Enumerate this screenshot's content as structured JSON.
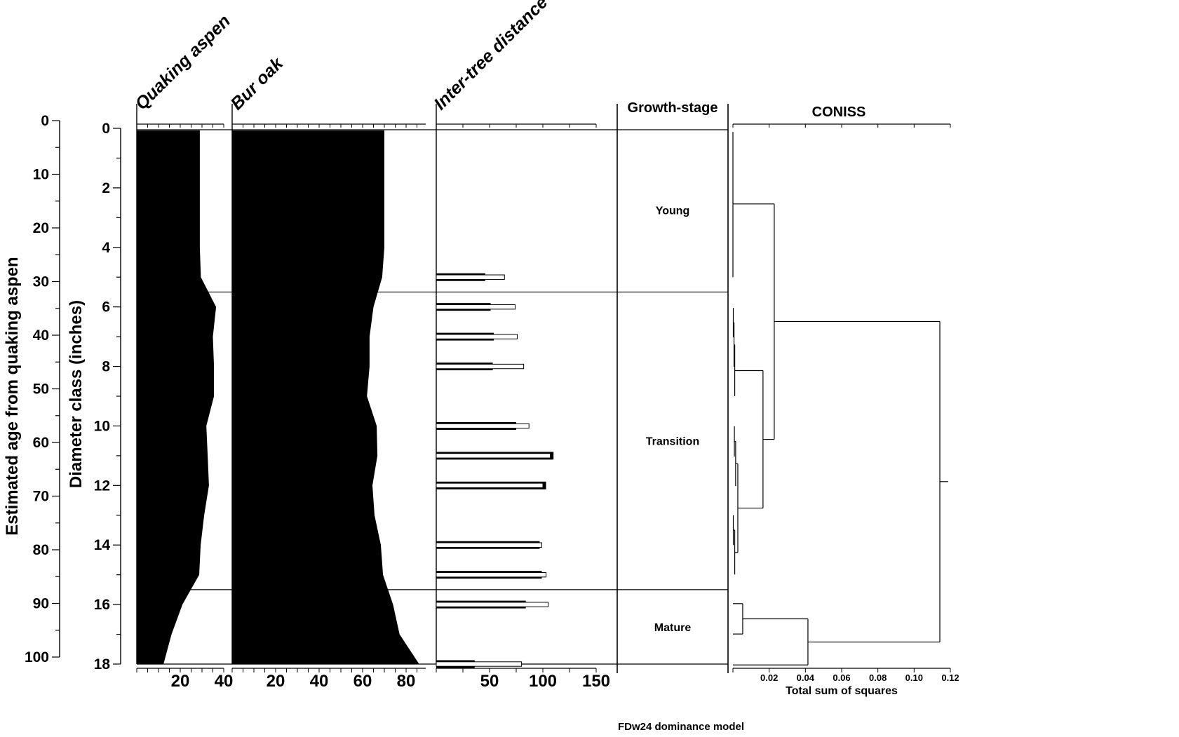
{
  "caption": "FDw24 dominance model",
  "age_axis": {
    "title": "Estimated age from quaking aspen",
    "min": 0,
    "max": 100,
    "major_step": 10,
    "minor_step": 5,
    "tick_labels": [
      "0",
      "10",
      "20",
      "30",
      "40",
      "50",
      "60",
      "70",
      "80",
      "90",
      "100"
    ]
  },
  "diameter_axis": {
    "title": "Diameter class (inches)",
    "min": 0,
    "max": 18,
    "major_step": 2,
    "minor_step": 1,
    "tick_labels": [
      "0",
      "2",
      "4",
      "6",
      "8",
      "10",
      "12",
      "14",
      "16",
      "18"
    ]
  },
  "chart_data": [
    {
      "id": "quaking_aspen",
      "type": "area",
      "title": "Quaking aspen",
      "x_axis": {
        "min": 0,
        "max": 40,
        "minor_step": 5,
        "ticks": [
          20,
          40
        ],
        "tick_labels": [
          "20",
          "40"
        ]
      },
      "points": [
        [
          0,
          29
        ],
        [
          1,
          29
        ],
        [
          2,
          29
        ],
        [
          3,
          29
        ],
        [
          4,
          29
        ],
        [
          5,
          29.5
        ],
        [
          6,
          36.5
        ],
        [
          7,
          35
        ],
        [
          8,
          35.5
        ],
        [
          9,
          35.5
        ],
        [
          10,
          32
        ],
        [
          11,
          32.6
        ],
        [
          12,
          33.2
        ],
        [
          13,
          31
        ],
        [
          14,
          29.4
        ],
        [
          15,
          28.7
        ],
        [
          16,
          21
        ],
        [
          17,
          16
        ],
        [
          18,
          12.3
        ]
      ]
    },
    {
      "id": "bur_oak",
      "type": "area",
      "title": "Bur oak",
      "x_axis": {
        "min": 0,
        "max": 85,
        "minor_step": 5,
        "ticks": [
          20,
          40,
          60,
          80
        ],
        "tick_labels": [
          "20",
          "40",
          "60",
          "80"
        ]
      },
      "points": [
        [
          0,
          70
        ],
        [
          1,
          70
        ],
        [
          2,
          70
        ],
        [
          3,
          70
        ],
        [
          4,
          70
        ],
        [
          5,
          69
        ],
        [
          6,
          65
        ],
        [
          7,
          63.2
        ],
        [
          8,
          63.2
        ],
        [
          9,
          62
        ],
        [
          10,
          66.5
        ],
        [
          11,
          66.8
        ],
        [
          12,
          64.5
        ],
        [
          13,
          65.5
        ],
        [
          14,
          68.4
        ],
        [
          15,
          69.4
        ],
        [
          16,
          74
        ],
        [
          17,
          77
        ],
        [
          18,
          86
        ]
      ]
    },
    {
      "id": "inter_tree",
      "type": "bar",
      "title": "Inter-tree distance",
      "x_axis": {
        "min": 0,
        "max": 150,
        "minor_step": 25,
        "ticks": [
          50,
          100,
          150
        ],
        "tick_labels": [
          "50",
          "100",
          "150"
        ]
      },
      "rows": [
        {
          "diameter": 5,
          "solid": 46,
          "open": 64
        },
        {
          "diameter": 6,
          "solid": 51,
          "open": 74
        },
        {
          "diameter": 7,
          "solid": 54,
          "open": 76
        },
        {
          "diameter": 8,
          "solid": 53,
          "open": 82
        },
        {
          "diameter": 10,
          "solid": 75,
          "open": 87
        },
        {
          "diameter": 11,
          "solid": 110,
          "open": 107
        },
        {
          "diameter": 12,
          "solid": 103,
          "open": 100
        },
        {
          "diameter": 14,
          "solid": 97,
          "open": 99
        },
        {
          "diameter": 15,
          "solid": 99,
          "open": 103
        },
        {
          "diameter": 16,
          "solid": 84,
          "open": 105
        },
        {
          "diameter": 18,
          "solid": 36,
          "open": 80
        }
      ]
    },
    {
      "id": "growth_stage",
      "type": "zones",
      "title": "Growth-stage",
      "zones": [
        {
          "label": "Young",
          "from": 0,
          "to": 5.5
        },
        {
          "label": "Transition",
          "from": 5.5,
          "to": 15.5
        },
        {
          "label": "Mature",
          "from": 15.5,
          "to": 18
        }
      ]
    },
    {
      "id": "coniss",
      "type": "dendrogram",
      "title": "CONISS",
      "xlabel": "Total sum of squares",
      "x_axis": {
        "min": 0,
        "max": 0.12,
        "step": 0.02,
        "tick_labels": [
          "0.02",
          "0.04",
          "0.06",
          "0.08",
          "0.10",
          "0.12"
        ]
      },
      "segments": [
        [
          0,
          0.12,
          0,
          5.0
        ],
        [
          0,
          2.54,
          0.0228,
          2.54
        ],
        [
          0.0228,
          2.54,
          0.0228,
          10.45
        ],
        [
          0.0228,
          6.49,
          0.1142,
          6.49
        ],
        [
          0.1142,
          6.49,
          0.1142,
          17.26
        ],
        [
          0.1142,
          11.87,
          0.1188,
          11.87
        ],
        [
          0.0002,
          6.03,
          0.0002,
          7.02
        ],
        [
          0.0002,
          6.53,
          0.0006,
          6.53
        ],
        [
          0.0006,
          6.53,
          0.0006,
          8.01
        ],
        [
          0.0006,
          7.27,
          0.001,
          7.27
        ],
        [
          0.001,
          7.27,
          0.001,
          9.0
        ],
        [
          0.001,
          8.14,
          0.0166,
          8.14
        ],
        [
          0.0166,
          8.14,
          0.0166,
          12.76
        ],
        [
          0.0008,
          10.01,
          0.0008,
          11.03
        ],
        [
          0.0008,
          10.52,
          0.0015,
          10.52
        ],
        [
          0.0015,
          10.52,
          0.0015,
          12.02
        ],
        [
          0.0015,
          11.27,
          0.0027,
          11.27
        ],
        [
          0.0002,
          13.0,
          0.0002,
          14.0
        ],
        [
          0.0002,
          13.5,
          0.001,
          13.5
        ],
        [
          0.001,
          13.5,
          0.001,
          14.99
        ],
        [
          0.001,
          14.25,
          0.0027,
          14.25
        ],
        [
          0.0027,
          11.27,
          0.0027,
          14.25
        ],
        [
          0.0027,
          12.76,
          0.0166,
          12.76
        ],
        [
          0.0166,
          10.45,
          0.0228,
          10.45
        ],
        [
          0,
          15.97,
          0.0054,
          15.97
        ],
        [
          0,
          16.99,
          0.0054,
          16.99
        ],
        [
          0.0054,
          15.97,
          0.0054,
          16.99
        ],
        [
          0.0054,
          16.48,
          0.0414,
          16.48
        ],
        [
          0,
          18.03,
          0.0414,
          18.03
        ],
        [
          0.0414,
          16.48,
          0.0414,
          18.03
        ],
        [
          0.0414,
          17.26,
          0.1142,
          17.26
        ]
      ]
    }
  ]
}
